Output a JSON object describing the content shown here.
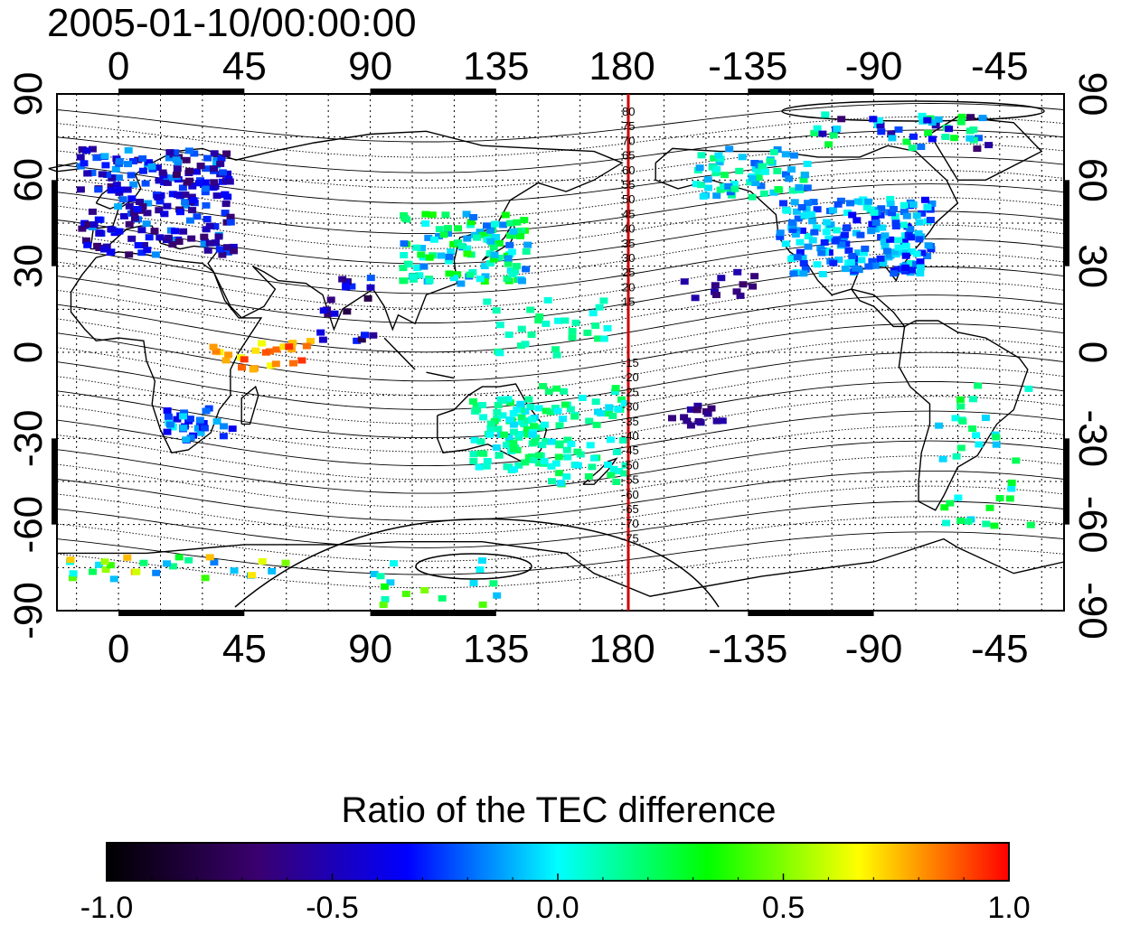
{
  "timestamp": "2005-01-10/00:00:00",
  "colorbar_title": "Ratio of the TEC difference",
  "colorbar_ticks": [
    "-1.0",
    "-0.5",
    "0.0",
    "0.5",
    "1.0"
  ],
  "colorbar_range": [
    -1.0,
    1.0
  ],
  "colorbar_colors": [
    "#000000",
    "#3a006e",
    "#0000ff",
    "#00ffff",
    "#00ff00",
    "#ffff00",
    "#ff0000"
  ],
  "x_tick_labels": [
    "0",
    "45",
    "90",
    "135",
    "180",
    "-135",
    "-90",
    "-45"
  ],
  "y_tick_labels": [
    "90",
    "60",
    "30",
    "0",
    "-30",
    "-60",
    "-90"
  ],
  "dateline_longitude": 180,
  "dateline_color": "#cc0000",
  "contour_labels_north": [
    "80",
    "75",
    "70",
    "65",
    "60",
    "55",
    "50",
    "45",
    "40",
    "35",
    "30",
    "25",
    "20",
    "15"
  ],
  "contour_labels_south": [
    "-15",
    "-20",
    "-25",
    "-30",
    "-35",
    "-40",
    "-45",
    "-50",
    "-55",
    "-60",
    "-65",
    "-70",
    "-75"
  ]
}
